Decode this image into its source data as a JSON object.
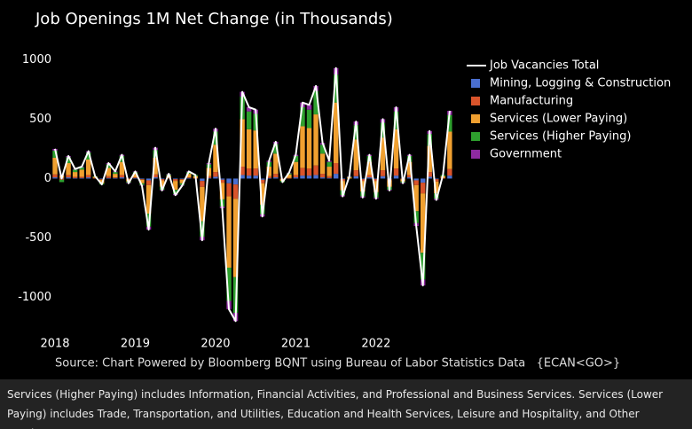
{
  "chart_data": {
    "type": "bar",
    "stacked": true,
    "title": "Job Openings 1M Net Change (in Thousands)",
    "source": "Source: Chart Powered by Bloomberg BQNT using Bureau of Labor Statistics Data   {ECAN<GO>}",
    "footnote": "Services (Higher Paying) includes Information, Financial Activities, and Professional and Business Services. Services (Lower Paying) includes Trade, Transportation, and Utilities, Education and Health Services, Leisure and Hospitality, and Other Services.",
    "categories": [
      "2018",
      null,
      null,
      null,
      null,
      null,
      null,
      null,
      null,
      null,
      null,
      null,
      "2019",
      null,
      null,
      null,
      null,
      null,
      null,
      null,
      null,
      null,
      null,
      null,
      "2020",
      null,
      null,
      null,
      null,
      null,
      null,
      null,
      null,
      null,
      null,
      null,
      "2021",
      null,
      null,
      null,
      null,
      null,
      null,
      null,
      null,
      null,
      null,
      null,
      "2022",
      null,
      null,
      null,
      null,
      null,
      null,
      null,
      null,
      null,
      null,
      null
    ],
    "ylim": [
      -1250,
      1100
    ],
    "yticks": [
      -1000,
      -500,
      0,
      500,
      1000
    ],
    "legend": "top-right",
    "series": [
      {
        "name": "Job Vacancies Total",
        "type": "line",
        "color": "#ffffff",
        "values": [
          250,
          0,
          190,
          80,
          100,
          230,
          20,
          -50,
          130,
          60,
          200,
          -40,
          60,
          -60,
          -430,
          260,
          -100,
          40,
          -140,
          -60,
          60,
          30,
          -520,
          130,
          420,
          -250,
          -1100,
          -1200,
          730,
          600,
          580,
          -320,
          150,
          310,
          -30,
          50,
          200,
          640,
          620,
          780,
          300,
          150,
          930,
          -150,
          20,
          480,
          -160,
          200,
          -170,
          500,
          -100,
          600,
          -40,
          200,
          -400,
          -900,
          400,
          -180,
          30,
          570
        ]
      },
      {
        "name": "Mining, Logging & Construction",
        "color": "#4a6fd0",
        "values": [
          10,
          5,
          10,
          5,
          5,
          10,
          0,
          -5,
          5,
          5,
          10,
          0,
          5,
          -5,
          -15,
          10,
          -5,
          0,
          -5,
          -5,
          5,
          0,
          -20,
          5,
          15,
          -10,
          -40,
          -50,
          30,
          25,
          25,
          -10,
          5,
          10,
          0,
          0,
          10,
          25,
          25,
          30,
          10,
          5,
          40,
          -5,
          0,
          20,
          -5,
          10,
          -5,
          20,
          -5,
          25,
          0,
          10,
          -15,
          -35,
          15,
          -5,
          0,
          25
        ]
      },
      {
        "name": "Manufacturing",
        "color": "#d9542b",
        "values": [
          25,
          -10,
          20,
          10,
          10,
          20,
          5,
          -5,
          15,
          5,
          20,
          -5,
          5,
          -5,
          -40,
          25,
          -10,
          5,
          -15,
          -5,
          5,
          5,
          -50,
          15,
          40,
          -25,
          -110,
          -120,
          70,
          60,
          60,
          -30,
          15,
          30,
          -5,
          5,
          20,
          65,
          60,
          80,
          30,
          15,
          90,
          -15,
          0,
          50,
          -15,
          20,
          -15,
          50,
          -10,
          60,
          -5,
          20,
          -40,
          -90,
          40,
          -20,
          5,
          55
        ]
      },
      {
        "name": "Services (Lower Paying)",
        "color": "#f0a030",
        "values": [
          140,
          20,
          100,
          40,
          60,
          130,
          10,
          -30,
          70,
          30,
          110,
          -20,
          30,
          -30,
          -240,
          140,
          -55,
          20,
          -75,
          -30,
          30,
          15,
          -290,
          70,
          230,
          -140,
          -600,
          -660,
          400,
          330,
          320,
          -180,
          80,
          170,
          -15,
          30,
          110,
          350,
          340,
          430,
          170,
          80,
          510,
          -80,
          10,
          260,
          -90,
          110,
          -95,
          275,
          -55,
          330,
          -20,
          110,
          -220,
          -500,
          220,
          -100,
          15,
          315
        ]
      },
      {
        "name": "Services (Higher Paying)",
        "color": "#2ea02e",
        "values": [
          60,
          -20,
          50,
          20,
          20,
          60,
          5,
          -10,
          30,
          15,
          50,
          -10,
          15,
          -15,
          -110,
          65,
          -25,
          10,
          -35,
          -15,
          15,
          10,
          -130,
          30,
          110,
          -60,
          -280,
          -300,
          190,
          150,
          140,
          -80,
          40,
          80,
          -10,
          10,
          50,
          160,
          155,
          195,
          75,
          40,
          235,
          -40,
          5,
          120,
          -40,
          50,
          -45,
          125,
          -25,
          150,
          -10,
          50,
          -100,
          -225,
          100,
          -45,
          10,
          140
        ]
      },
      {
        "name": "Government",
        "color": "#8e2aa0",
        "values": [
          15,
          5,
          10,
          5,
          5,
          10,
          0,
          0,
          10,
          5,
          10,
          -5,
          5,
          -5,
          -25,
          20,
          -5,
          5,
          -10,
          -5,
          5,
          0,
          -30,
          10,
          25,
          -15,
          -70,
          -70,
          40,
          35,
          35,
          -20,
          10,
          20,
          0,
          5,
          10,
          40,
          40,
          45,
          15,
          10,
          55,
          -10,
          5,
          30,
          -10,
          10,
          -10,
          30,
          -5,
          35,
          -5,
          10,
          -25,
          -50,
          25,
          -10,
          0,
          35
        ]
      }
    ]
  }
}
